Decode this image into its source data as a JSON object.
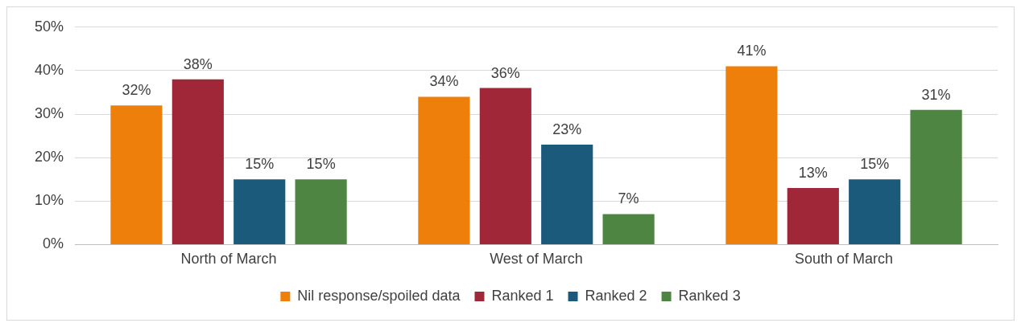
{
  "chart_data": {
    "type": "bar",
    "categories": [
      "North of March",
      "West of March",
      "South of March"
    ],
    "series": [
      {
        "name": "Nil response/spoiled data",
        "color": "#ee7f0b",
        "values": [
          32,
          34,
          41
        ],
        "value_labels": [
          "32%",
          "34%",
          "41%"
        ]
      },
      {
        "name": "Ranked 1",
        "color": "#a02737",
        "values": [
          38,
          36,
          13
        ],
        "value_labels": [
          "38%",
          "36%",
          "13%"
        ]
      },
      {
        "name": "Ranked 2",
        "color": "#1b5a7b",
        "values": [
          15,
          23,
          15
        ],
        "value_labels": [
          "15%",
          "23%",
          "15%"
        ]
      },
      {
        "name": "Ranked 3",
        "color": "#4e8542",
        "values": [
          15,
          7,
          31
        ],
        "value_labels": [
          "15%",
          "7%",
          "31%"
        ]
      }
    ],
    "ylim": [
      0,
      50
    ],
    "yticks": [
      {
        "value": 0,
        "label": "0%"
      },
      {
        "value": 10,
        "label": "10%"
      },
      {
        "value": 20,
        "label": "20%"
      },
      {
        "value": 30,
        "label": "30%"
      },
      {
        "value": 40,
        "label": "40%"
      },
      {
        "value": 50,
        "label": "50%"
      }
    ],
    "grid": "y",
    "legend": "bottom"
  }
}
